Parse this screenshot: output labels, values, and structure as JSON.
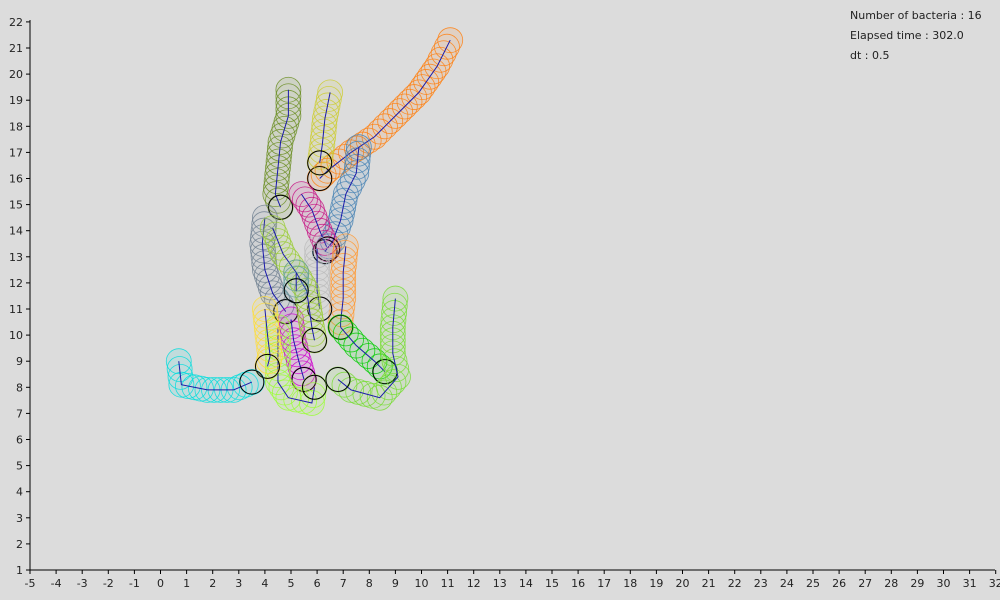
{
  "info": {
    "bacteria_label": "Number of bacteria : 16",
    "elapsed_label": "Elapsed time : 302.0",
    "dt_label": "dt : 0.5"
  },
  "axes": {
    "x_ticks": [
      "-5",
      "-4",
      "-3",
      "-2",
      "-1",
      "0",
      "1",
      "2",
      "3",
      "4",
      "5",
      "6",
      "7",
      "8",
      "9",
      "10",
      "11",
      "12",
      "13",
      "14",
      "15",
      "16",
      "17",
      "18",
      "19",
      "20",
      "21",
      "22",
      "23",
      "24",
      "25",
      "26",
      "27",
      "28",
      "29",
      "30",
      "31",
      "32"
    ],
    "y_ticks": [
      "1",
      "2",
      "3",
      "4",
      "5",
      "6",
      "7",
      "8",
      "9",
      "10",
      "11",
      "12",
      "13",
      "14",
      "15",
      "16",
      "17",
      "18",
      "19",
      "20",
      "21",
      "22"
    ],
    "xlim": [
      -5,
      32
    ],
    "ylim": [
      1,
      22
    ]
  },
  "bacteria": [
    {
      "color": "#ff7f0e",
      "path": [
        [
          11.1,
          21.3
        ],
        [
          10.6,
          20.3
        ],
        [
          9.9,
          19.3
        ],
        [
          9.0,
          18.4
        ],
        [
          8.2,
          17.6
        ],
        [
          7.3,
          17.0
        ],
        [
          6.4,
          16.3
        ],
        [
          6.1,
          16.0
        ]
      ]
    },
    {
      "color": "#6b8e23",
      "path": [
        [
          4.9,
          19.4
        ],
        [
          4.9,
          18.4
        ],
        [
          4.6,
          17.4
        ],
        [
          4.5,
          16.4
        ],
        [
          4.4,
          15.4
        ],
        [
          4.6,
          14.9
        ]
      ]
    },
    {
      "color": "#cccc33",
      "path": [
        [
          6.5,
          19.3
        ],
        [
          6.3,
          18.3
        ],
        [
          6.2,
          17.3
        ],
        [
          6.1,
          16.6
        ]
      ]
    },
    {
      "color": "#4682b4",
      "path": [
        [
          7.6,
          17.2
        ],
        [
          7.5,
          16.2
        ],
        [
          7.1,
          15.4
        ],
        [
          6.9,
          14.4
        ],
        [
          6.6,
          13.6
        ],
        [
          6.3,
          13.2
        ]
      ]
    },
    {
      "color": "#708090",
      "path": [
        [
          4.0,
          14.5
        ],
        [
          3.9,
          13.5
        ],
        [
          4.0,
          12.5
        ],
        [
          4.3,
          11.6
        ],
        [
          4.8,
          10.9
        ]
      ]
    },
    {
      "color": "#c71585",
      "path": [
        [
          5.4,
          15.4
        ],
        [
          5.8,
          14.8
        ],
        [
          6.1,
          14.0
        ],
        [
          6.4,
          13.3
        ]
      ]
    },
    {
      "color": "#cc00cc",
      "path": [
        [
          5.0,
          10.6
        ],
        [
          5.1,
          9.8
        ],
        [
          5.3,
          9.0
        ],
        [
          5.5,
          8.3
        ]
      ]
    },
    {
      "color": "#ff9933",
      "path": [
        [
          7.1,
          13.4
        ],
        [
          7.0,
          12.4
        ],
        [
          7.0,
          11.4
        ],
        [
          6.9,
          10.5
        ],
        [
          6.9,
          10.3
        ]
      ]
    },
    {
      "color": "#bbbbbb",
      "path": [
        [
          6.0,
          13.3
        ],
        [
          6.0,
          12.3
        ],
        [
          6.0,
          11.7
        ],
        [
          6.1,
          11.0
        ]
      ]
    },
    {
      "color": "#99cc33",
      "path": [
        [
          4.3,
          14.1
        ],
        [
          4.7,
          13.1
        ],
        [
          5.2,
          12.4
        ],
        [
          5.6,
          11.7
        ],
        [
          5.7,
          11.0
        ],
        [
          5.8,
          10.3
        ],
        [
          5.9,
          9.8
        ]
      ]
    },
    {
      "color": "#99ff33",
      "path": [
        [
          4.5,
          10.3
        ],
        [
          4.5,
          9.0
        ],
        [
          4.5,
          8.2
        ],
        [
          4.9,
          7.6
        ],
        [
          5.8,
          7.4
        ],
        [
          5.9,
          8.0
        ]
      ]
    },
    {
      "color": "#ffdd33",
      "path": [
        [
          4.0,
          11.0
        ],
        [
          4.1,
          10.0
        ],
        [
          4.2,
          9.2
        ],
        [
          4.1,
          8.8
        ]
      ]
    },
    {
      "color": "#00cc00",
      "path": [
        [
          6.9,
          10.3
        ],
        [
          7.5,
          9.6
        ],
        [
          8.2,
          9.0
        ],
        [
          8.6,
          8.6
        ]
      ]
    },
    {
      "color": "#77dd33",
      "path": [
        [
          9.0,
          11.4
        ],
        [
          8.9,
          10.3
        ],
        [
          8.9,
          9.3
        ],
        [
          9.1,
          8.4
        ],
        [
          8.4,
          7.6
        ],
        [
          7.3,
          7.9
        ],
        [
          6.8,
          8.3
        ]
      ]
    },
    {
      "color": "#00dddd",
      "path": [
        [
          0.7,
          9.0
        ],
        [
          0.8,
          8.1
        ],
        [
          1.8,
          7.9
        ],
        [
          2.8,
          7.9
        ],
        [
          3.5,
          8.2
        ]
      ]
    },
    {
      "color": "#5f9ea0",
      "path": [
        [
          5.2,
          12.4
        ],
        [
          5.2,
          11.7
        ]
      ]
    }
  ]
}
